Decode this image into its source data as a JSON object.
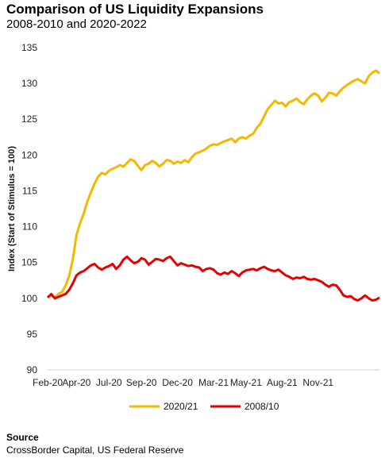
{
  "chart_data": {
    "type": "line",
    "title": "Comparison of US Liquidity Expansions",
    "subtitle": "2008-2010 and 2020-2022",
    "ylabel": "Index (Start of Stimulus = 100)",
    "xlabel": "",
    "ylim": [
      90,
      135
    ],
    "yticks": [
      90,
      95,
      100,
      105,
      110,
      115,
      120,
      125,
      130,
      135
    ],
    "xticks": [
      "Feb-20",
      "Apr-20",
      "Jul-20",
      "Sep-20",
      "Dec-20",
      "Mar-21",
      "May-21",
      "Aug-21",
      "Nov-21"
    ],
    "xtick_index": [
      0,
      8,
      17,
      26,
      36,
      46,
      55,
      65,
      75
    ],
    "grid": false,
    "legend_position": "bottom",
    "series": [
      {
        "name": "2020/21",
        "color": "#F5B800",
        "values": [
          100.2,
          100.4,
          100.1,
          100.6,
          100.9,
          101.8,
          103.2,
          105.5,
          108.8,
          110.5,
          111.8,
          113.5,
          114.8,
          116.0,
          117.0,
          117.5,
          117.3,
          117.8,
          118.1,
          118.3,
          118.6,
          118.4,
          118.9,
          119.4,
          119.2,
          118.5,
          117.9,
          118.6,
          118.8,
          119.2,
          118.9,
          118.4,
          118.8,
          119.3,
          119.2,
          118.8,
          119.1,
          118.9,
          119.3,
          119.0,
          119.7,
          120.2,
          120.4,
          120.6,
          120.9,
          121.3,
          121.5,
          121.4,
          121.7,
          121.9,
          122.1,
          122.3,
          121.8,
          122.3,
          122.5,
          122.3,
          122.7,
          123.0,
          123.8,
          124.4,
          125.4,
          126.4,
          127.0,
          127.6,
          127.2,
          127.3,
          126.8,
          127.4,
          127.6,
          127.9,
          127.4,
          127.1,
          127.8,
          128.3,
          128.6,
          128.3,
          127.5,
          128.0,
          128.7,
          128.6,
          128.3,
          128.9,
          129.4,
          129.8,
          130.1,
          130.4,
          130.6,
          130.3,
          130.0,
          131.0,
          131.5,
          131.8,
          131.4
        ]
      },
      {
        "name": "2008/10",
        "color": "#E60000",
        "values": [
          100.1,
          100.6,
          100.0,
          100.2,
          100.4,
          100.6,
          101.2,
          102.1,
          103.2,
          103.6,
          103.8,
          104.2,
          104.6,
          104.8,
          104.3,
          104.0,
          104.3,
          104.5,
          104.8,
          104.1,
          104.6,
          105.4,
          105.8,
          105.3,
          104.9,
          105.1,
          105.6,
          105.4,
          104.7,
          105.1,
          105.5,
          105.4,
          105.2,
          105.6,
          105.8,
          105.2,
          104.6,
          104.9,
          104.7,
          104.5,
          104.6,
          104.4,
          104.3,
          103.8,
          104.1,
          104.2,
          104.0,
          103.5,
          103.3,
          103.6,
          103.4,
          103.8,
          103.5,
          103.1,
          103.6,
          103.9,
          104.0,
          104.1,
          103.9,
          104.2,
          104.4,
          104.1,
          103.9,
          103.8,
          104.0,
          103.6,
          103.2,
          103.0,
          102.7,
          102.9,
          102.8,
          103.0,
          102.7,
          102.6,
          102.7,
          102.5,
          102.3,
          101.9,
          101.6,
          101.9,
          101.8,
          101.2,
          100.4,
          100.2,
          100.3,
          99.9,
          99.7,
          100.0,
          100.4,
          100.0,
          99.7,
          99.8,
          100.1
        ]
      }
    ]
  },
  "source": {
    "heading": "Source",
    "text": "CrossBorder Capital, US Federal Reserve"
  }
}
